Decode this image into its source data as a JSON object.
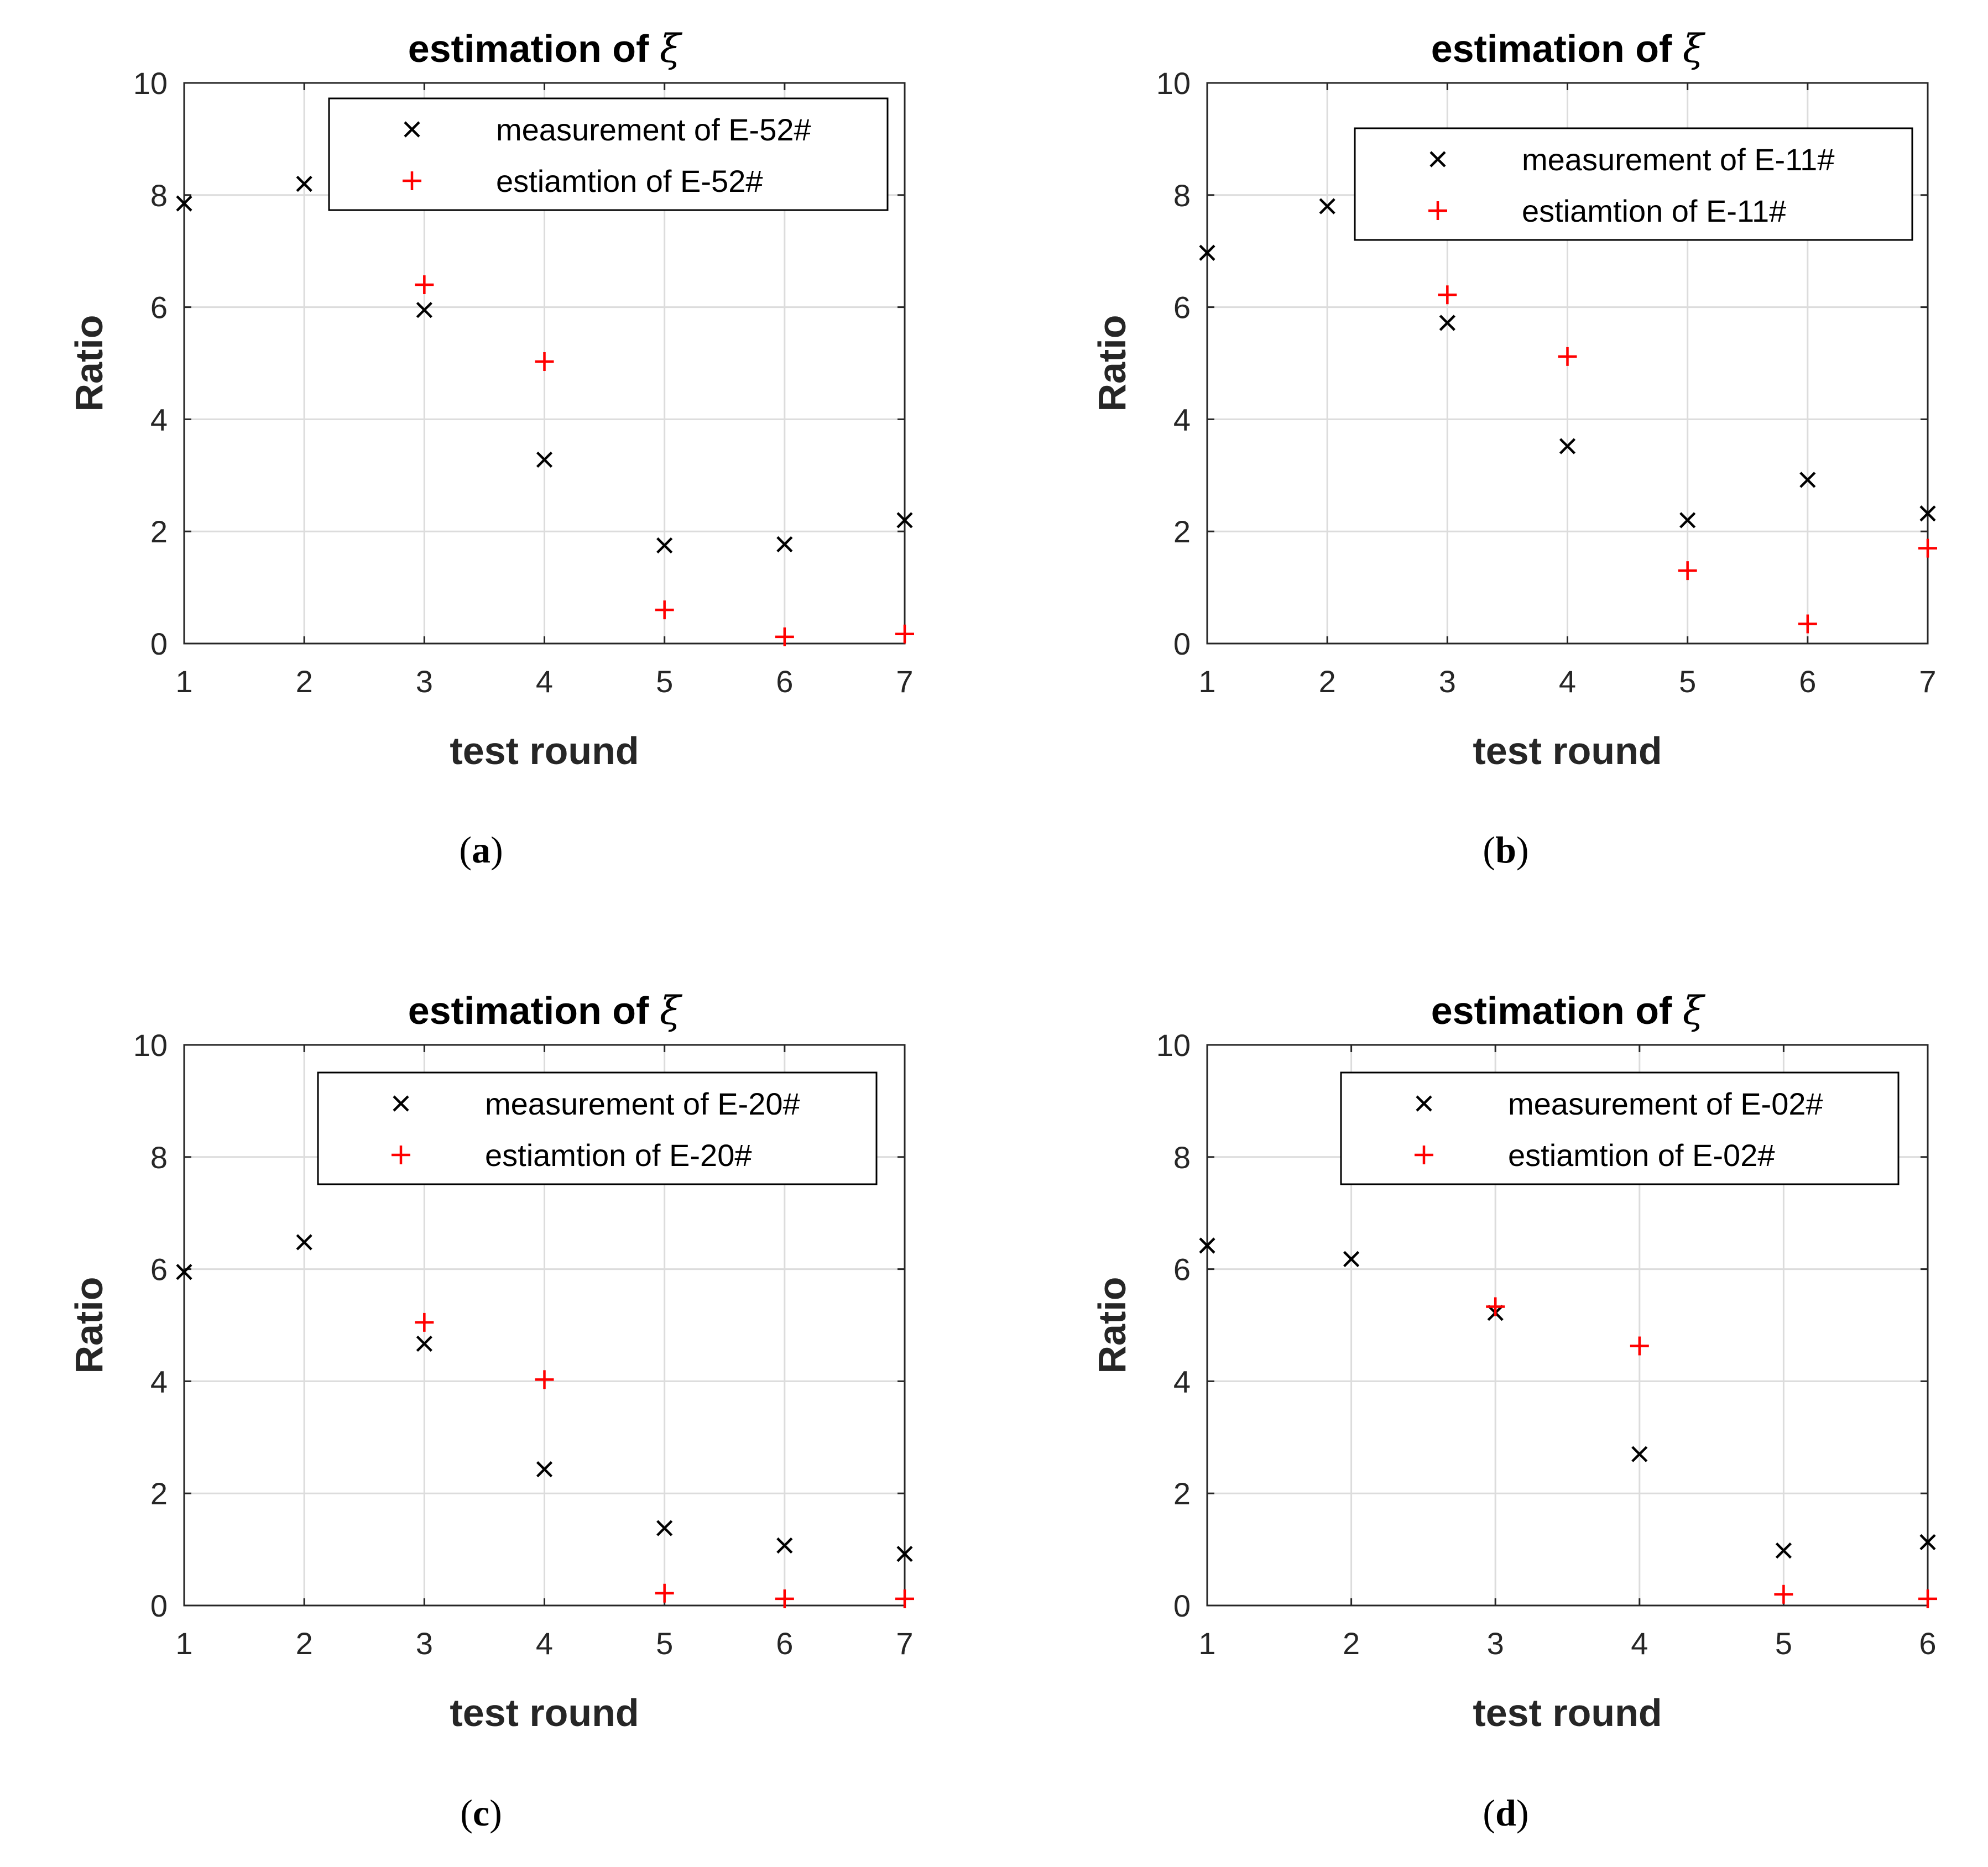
{
  "colors": {
    "measurement": "#000000",
    "estimation": "#ff0000",
    "axis": "#262626",
    "grid": "#dcdcdc",
    "background": "#ffffff"
  },
  "chart_data": [
    {
      "type": "scatter",
      "id": "a",
      "caption_letter": "a",
      "title": "estimation of ",
      "title_symbol": "ξ",
      "xlabel": "test round",
      "ylabel": "Ratio",
      "xlim": [
        1,
        7
      ],
      "ylim": [
        0,
        10
      ],
      "xticks": [
        1,
        2,
        3,
        4,
        5,
        6,
        7
      ],
      "yticks": [
        0,
        2,
        4,
        6,
        8,
        10
      ],
      "grid": true,
      "legend_position": "top-right",
      "series": [
        {
          "name": "measurement of E-52#",
          "marker": "x",
          "color": "#000000",
          "x": [
            1,
            2,
            3,
            4,
            5,
            6,
            7
          ],
          "y": [
            7.85,
            8.2,
            5.95,
            3.28,
            1.75,
            1.77,
            2.2
          ]
        },
        {
          "name": "estiamtion of E-52#",
          "marker": "+",
          "color": "#ff0000",
          "x": [
            3,
            4,
            5,
            6,
            7
          ],
          "y": [
            6.4,
            5.03,
            0.6,
            0.12,
            0.17
          ]
        }
      ]
    },
    {
      "type": "scatter",
      "id": "b",
      "caption_letter": "b",
      "title": "estimation of ",
      "title_symbol": "ξ",
      "xlabel": "test round",
      "ylabel": "Ratio",
      "xlim": [
        1,
        7
      ],
      "ylim": [
        0,
        10
      ],
      "xticks": [
        1,
        2,
        3,
        4,
        5,
        6,
        7
      ],
      "yticks": [
        0,
        2,
        4,
        6,
        8,
        10
      ],
      "grid": true,
      "legend_position": "top-right",
      "series": [
        {
          "name": "measurement of E-11#",
          "marker": "x",
          "color": "#000000",
          "x": [
            1,
            2,
            3,
            4,
            5,
            6,
            7
          ],
          "y": [
            6.97,
            7.8,
            5.72,
            3.52,
            2.2,
            2.92,
            2.32
          ]
        },
        {
          "name": "estiamtion of E-11#",
          "marker": "+",
          "color": "#ff0000",
          "x": [
            3,
            4,
            5,
            6,
            7
          ],
          "y": [
            6.22,
            5.12,
            1.3,
            0.35,
            1.7
          ]
        }
      ]
    },
    {
      "type": "scatter",
      "id": "c",
      "caption_letter": "c",
      "title": "estimation of ",
      "title_symbol": "ξ",
      "xlabel": "test round",
      "ylabel": "Ratio",
      "xlim": [
        1,
        7
      ],
      "ylim": [
        0,
        10
      ],
      "xticks": [
        1,
        2,
        3,
        4,
        5,
        6,
        7
      ],
      "yticks": [
        0,
        2,
        4,
        6,
        8,
        10
      ],
      "grid": true,
      "legend_position": "top-right",
      "series": [
        {
          "name": "measurement of E-20#",
          "marker": "x",
          "color": "#000000",
          "x": [
            1,
            2,
            3,
            4,
            5,
            6,
            7
          ],
          "y": [
            5.95,
            6.48,
            4.67,
            2.43,
            1.38,
            1.07,
            0.92
          ]
        },
        {
          "name": "estiamtion of E-20#",
          "marker": "+",
          "color": "#ff0000",
          "x": [
            3,
            4,
            5,
            6,
            7
          ],
          "y": [
            5.05,
            4.03,
            0.22,
            0.12,
            0.12
          ]
        }
      ]
    },
    {
      "type": "scatter",
      "id": "d",
      "caption_letter": "d",
      "title": "estimation of ",
      "title_symbol": "ξ",
      "xlabel": "test round",
      "ylabel": "Ratio",
      "xlim": [
        1,
        6
      ],
      "ylim": [
        0,
        10
      ],
      "xticks": [
        1,
        2,
        3,
        4,
        5,
        6
      ],
      "yticks": [
        0,
        2,
        4,
        6,
        8,
        10
      ],
      "grid": true,
      "legend_position": "top-right",
      "series": [
        {
          "name": "measurement of E-02#",
          "marker": "x",
          "color": "#000000",
          "x": [
            1,
            2,
            3,
            4,
            5,
            6
          ],
          "y": [
            6.42,
            6.18,
            5.22,
            2.7,
            0.98,
            1.13
          ]
        },
        {
          "name": "estiamtion of E-02#",
          "marker": "+",
          "color": "#ff0000",
          "x": [
            3,
            4,
            5,
            6
          ],
          "y": [
            5.33,
            4.63,
            0.2,
            0.12
          ]
        }
      ]
    }
  ]
}
